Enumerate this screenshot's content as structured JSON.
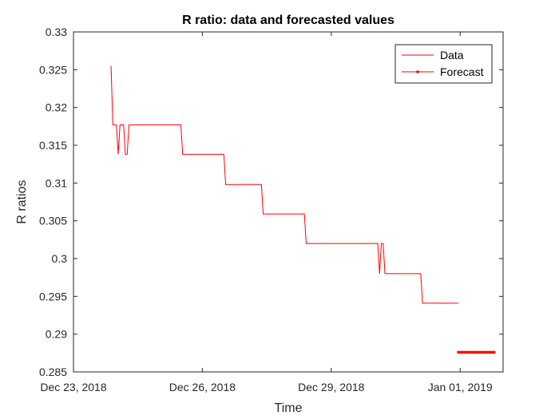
{
  "chart_data": {
    "type": "line",
    "title": "R ratio: data and forecasted values",
    "xlabel": "Time",
    "ylabel": "R ratios",
    "ylim": [
      0.285,
      0.33
    ],
    "xlim": [
      "2018-12-23",
      "2019-01-02"
    ],
    "grid": false,
    "legend_position": "top-right",
    "x_ticks": [
      {
        "date": "2018-12-23",
        "label": "Dec 23, 2018"
      },
      {
        "date": "2018-12-26",
        "label": "Dec 26, 2018"
      },
      {
        "date": "2018-12-29",
        "label": "Dec 29, 2018"
      },
      {
        "date": "2019-01-01",
        "label": "Jan 01, 2019"
      }
    ],
    "y_ticks": [
      {
        "value": 0.285,
        "label": "0.285"
      },
      {
        "value": 0.29,
        "label": "0.29"
      },
      {
        "value": 0.295,
        "label": "0.295"
      },
      {
        "value": 0.3,
        "label": "0.3"
      },
      {
        "value": 0.305,
        "label": "0.305"
      },
      {
        "value": 0.31,
        "label": "0.31"
      },
      {
        "value": 0.315,
        "label": "0.315"
      },
      {
        "value": 0.32,
        "label": "0.32"
      },
      {
        "value": 0.325,
        "label": "0.325"
      },
      {
        "value": 0.33,
        "label": "0.33"
      }
    ],
    "series": [
      {
        "name": "Data",
        "color": "#ff0000",
        "marker": "none",
        "points": [
          [
            "2018-12-23 21:00",
            0.3255
          ],
          [
            "2018-12-23 22:00",
            0.3177
          ],
          [
            "2018-12-24 00:00",
            0.3177
          ],
          [
            "2018-12-24 01:00",
            0.3138
          ],
          [
            "2018-12-24 02:00",
            0.3177
          ],
          [
            "2018-12-24 04:00",
            0.3177
          ],
          [
            "2018-12-24 05:00",
            0.3138
          ],
          [
            "2018-12-24 06:00",
            0.3138
          ],
          [
            "2018-12-24 07:00",
            0.3177
          ],
          [
            "2018-12-25 12:00",
            0.3177
          ],
          [
            "2018-12-25 13:00",
            0.3138
          ],
          [
            "2018-12-26 12:00",
            0.3138
          ],
          [
            "2018-12-26 13:00",
            0.3098
          ],
          [
            "2018-12-27 09:00",
            0.3098
          ],
          [
            "2018-12-27 10:00",
            0.3059
          ],
          [
            "2018-12-28 09:00",
            0.3059
          ],
          [
            "2018-12-28 10:00",
            0.302
          ],
          [
            "2018-12-30 02:00",
            0.302
          ],
          [
            "2018-12-30 03:00",
            0.298
          ],
          [
            "2018-12-30 04:00",
            0.302
          ],
          [
            "2018-12-30 05:00",
            0.302
          ],
          [
            "2018-12-30 06:00",
            0.298
          ],
          [
            "2018-12-31 02:00",
            0.298
          ],
          [
            "2018-12-31 03:00",
            0.2941
          ],
          [
            "2018-12-31 23:00",
            0.2941
          ]
        ]
      },
      {
        "name": "Forecast",
        "color": "#ff0000",
        "marker": "dot",
        "start": "2018-12-31 23:00",
        "end": "2019-01-01 19:00",
        "step_hours": 1,
        "value": 0.2876
      }
    ]
  }
}
